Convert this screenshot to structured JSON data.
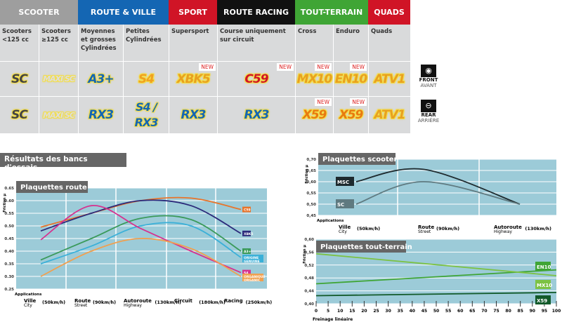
{
  "categories": [
    {
      "label": "SCOOTER",
      "color": "#9e9e9e"
    },
    {
      "label": "ROUTE & VILLE",
      "color": "#1466b3"
    },
    {
      "label": "SPORT",
      "color": "#d01426"
    },
    {
      "label": "ROUTE RACING",
      "color": "#111111"
    },
    {
      "label": "TOUT-TERRAIN",
      "color": "#3fa535"
    },
    {
      "label": "QUADS",
      "color": "#d01426"
    }
  ],
  "columns": [
    {
      "desc": "Scooters <125 cc",
      "front": "SC",
      "rear": "SC"
    },
    {
      "desc": "Scooters ≥125 cc",
      "front": "MAXI SC",
      "rear": "MAXI SC"
    },
    {
      "desc": "Moyennes et grosses Cylindrées",
      "front": "A3+",
      "rear": "RX3"
    },
    {
      "desc": "Petites Cylindrées",
      "front": "S4",
      "rear": "S4 / RX3"
    },
    {
      "desc": "Supersport",
      "front": "XBK5",
      "front_badge": "NEW",
      "rear": "RX3"
    },
    {
      "desc": "Course uniquement sur circuit",
      "front": "C59",
      "front_badge": "NEW",
      "rear": "RX3"
    },
    {
      "desc": "Cross",
      "front": "MX10",
      "front_badge": "NEW",
      "rear": "X59",
      "rear_badge": "NEW"
    },
    {
      "desc": "Enduro",
      "front": "EN10",
      "front_badge": "NEW",
      "rear": "X59",
      "rear_badge": "NEW"
    },
    {
      "desc": "Quads",
      "front": "ATV1",
      "rear": "ATV1"
    }
  ],
  "front": {
    "en": "FRONT",
    "fr": "AVANT",
    "icon": "front-disc-icon"
  },
  "rear": {
    "en": "REAR",
    "fr": "ARRIÈRE",
    "icon": "rear-disc-icon"
  },
  "results_title": "Résultats des bancs d'essais",
  "chart_data": [
    {
      "type": "line",
      "title": "Plaquettes route",
      "ylabel": "Friction µ",
      "xlabel": "Applications",
      "ylim": [
        0.25,
        0.65
      ],
      "yticks": [
        "0.65",
        "0.60",
        "0.55",
        "0.50",
        "0.45",
        "0.40",
        "0.35",
        "0.30",
        "0.25"
      ],
      "categories": [
        {
          "fr": "Ville",
          "en": "City",
          "speed": "(50km/h)"
        },
        {
          "fr": "Route",
          "en": "Street",
          "speed": "(90km/h)"
        },
        {
          "fr": "Autoroute",
          "en": "Highway",
          "speed": "(130km/h)"
        },
        {
          "fr": "Circuit",
          "en": "",
          "speed": "(180km/h)"
        },
        {
          "fr": "Racing",
          "en": "",
          "speed": "(250km/h)"
        }
      ],
      "series": [
        {
          "name": "C59",
          "color": "#e8742a",
          "values": [
            0.495,
            0.55,
            0.6,
            0.61,
            0.565
          ]
        },
        {
          "name": "XBK5",
          "color": "#2b2a7a",
          "values": [
            0.48,
            0.55,
            0.6,
            0.58,
            0.47
          ]
        },
        {
          "name": "A3+",
          "color": "#3a9a5a",
          "values": [
            0.365,
            0.45,
            0.53,
            0.525,
            0.4
          ]
        },
        {
          "name": "ORIGINE GENUINE",
          "color": "#3bb0d8",
          "values": [
            0.35,
            0.42,
            0.5,
            0.5,
            0.375
          ]
        },
        {
          "name": "S4",
          "color": "#d6318f",
          "values": [
            0.445,
            0.58,
            0.49,
            0.4,
            0.315
          ]
        },
        {
          "name": "ORGANIQUE ORGANIC",
          "color": "#f0a050",
          "values": [
            0.3,
            0.4,
            0.45,
            0.41,
            0.3
          ]
        }
      ]
    },
    {
      "type": "line",
      "title": "Plaquettes scooter",
      "ylabel": "Friction µ",
      "xlabel": "Applications",
      "ylim": [
        0.45,
        0.7
      ],
      "yticks": [
        "0,70",
        "0,65",
        "0,60",
        "0,55",
        "0,50",
        "0,45"
      ],
      "categories": [
        {
          "fr": "Ville",
          "en": "City",
          "speed": "(50km/h)"
        },
        {
          "fr": "Route",
          "en": "Street",
          "speed": "(90km/h)"
        },
        {
          "fr": "Autoroute",
          "en": "Highway",
          "speed": "(130km/h)"
        }
      ],
      "series": [
        {
          "name": "MSC",
          "color": "#1e2a2e",
          "values": [
            0.6,
            0.655,
            0.5
          ]
        },
        {
          "name": "SC",
          "color": "#5f7a80",
          "values": [
            0.5,
            0.6,
            0.5
          ]
        }
      ]
    },
    {
      "type": "line",
      "title": "Plaquettes tout-terrain",
      "ylabel": "Friction µ",
      "xlabel": "Freinage linéaire",
      "ylim": [
        0.4,
        0.6
      ],
      "xlim": [
        0,
        100
      ],
      "yticks": [
        "0,60",
        "0,56",
        "0,52",
        "0,48",
        "0,44",
        "0,40"
      ],
      "xticks": [
        "0",
        "5",
        "10",
        "15",
        "20",
        "25",
        "30",
        "35",
        "40",
        "45",
        "50",
        "55",
        "60",
        "65",
        "70",
        "75",
        "80",
        "85",
        "90",
        "95",
        "100"
      ],
      "series": [
        {
          "name": "EN10",
          "color": "#3fa535",
          "x": [
            0,
            100
          ],
          "values": [
            0.462,
            0.505
          ]
        },
        {
          "name": "MX10",
          "color": "#7cc243",
          "x": [
            0,
            100
          ],
          "values": [
            0.555,
            0.487
          ]
        },
        {
          "name": "X59",
          "color": "#125a2a",
          "x": [
            0,
            100
          ],
          "values": [
            0.425,
            0.435
          ]
        }
      ]
    }
  ]
}
